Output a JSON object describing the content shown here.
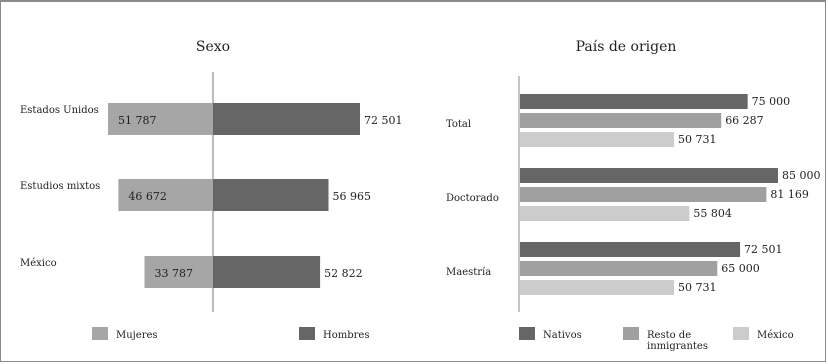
{
  "chart_data": [
    {
      "type": "bar",
      "title": "Sexo",
      "orientation": "horizontal-diverging",
      "categories": [
        "Estados Unidos",
        "Estudios mixtos",
        "México"
      ],
      "series": [
        {
          "name": "Mujeres",
          "values": [
            51787,
            46672,
            33787
          ],
          "labels": [
            "51 787",
            "46 672",
            "33 787"
          ],
          "color": "#a6a6a6"
        },
        {
          "name": "Hombres",
          "values": [
            72501,
            56965,
            52822
          ],
          "labels": [
            "72 501",
            "56 965",
            "52 822"
          ],
          "color": "#666666"
        }
      ],
      "legend_position": "bottom"
    },
    {
      "type": "bar",
      "title": "País de origen",
      "orientation": "horizontal",
      "categories": [
        "Total",
        "Doctorado",
        "Maestría"
      ],
      "series": [
        {
          "name": "Nativos",
          "values": [
            75000,
            85000,
            72501
          ],
          "labels": [
            "75 000",
            "85 000",
            "72 501"
          ],
          "color": "#666666"
        },
        {
          "name": "Resto de inmigrantes",
          "values": [
            66287,
            81169,
            65000
          ],
          "labels": [
            "66 287",
            "81 169",
            "65 000"
          ],
          "color": "#a0a0a0"
        },
        {
          "name": "México",
          "values": [
            50731,
            55804,
            50731
          ],
          "labels": [
            "50 731",
            "55 804",
            "50 731"
          ],
          "color": "#cccccc"
        }
      ],
      "legend_position": "bottom"
    }
  ]
}
